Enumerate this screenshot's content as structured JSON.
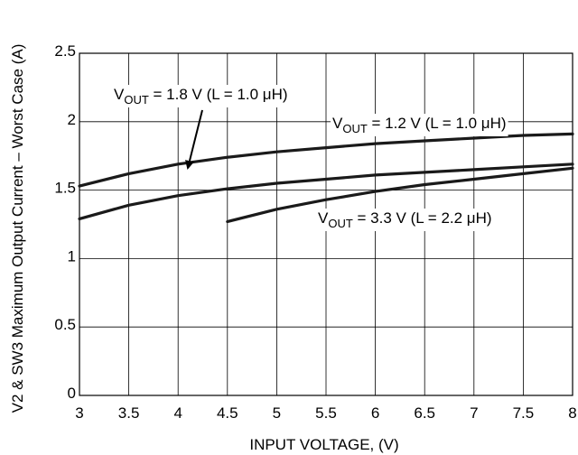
{
  "chart_data": {
    "type": "line",
    "title": "",
    "xlabel": "INPUT VOLTAGE, (V)",
    "ylabel": "V2 & SW3 Maximum Output Current – Worst Case (A)",
    "xlim": [
      3,
      8
    ],
    "ylim": [
      0,
      2.5
    ],
    "x_ticks": [
      3,
      3.5,
      4,
      4.5,
      5,
      5.5,
      6,
      6.5,
      7,
      7.5,
      8
    ],
    "x_tick_labels": [
      "3",
      "3.5",
      "4",
      "4.5",
      "5",
      "5.5",
      "6",
      "6.5",
      "7",
      "7.5",
      "8"
    ],
    "y_ticks": [
      0,
      0.5,
      1,
      1.5,
      2,
      2.5
    ],
    "y_tick_labels": [
      "0",
      "0.5",
      "1",
      "1.5",
      "2",
      "2.5"
    ],
    "grid": true,
    "series": [
      {
        "label_main": "V",
        "label_sub": "OUT",
        "label_rest": " = 1.2 V (L = 1.0 μH)",
        "x": [
          3,
          3.5,
          4,
          4.5,
          5,
          5.5,
          6,
          6.5,
          7,
          7.5,
          8
        ],
        "y": [
          1.53,
          1.62,
          1.69,
          1.74,
          1.78,
          1.81,
          1.84,
          1.86,
          1.88,
          1.9,
          1.91
        ]
      },
      {
        "label_main": "V",
        "label_sub": "OUT",
        "label_rest": " = 1.8 V (L = 1.0 μH)",
        "x": [
          3,
          3.5,
          4,
          4.5,
          5,
          5.5,
          6,
          6.5,
          7,
          7.5,
          8
        ],
        "y": [
          1.29,
          1.39,
          1.46,
          1.51,
          1.55,
          1.58,
          1.61,
          1.63,
          1.65,
          1.67,
          1.69
        ]
      },
      {
        "label_main": "V",
        "label_sub": "OUT",
        "label_rest": " = 3.3 V (L = 2.2 μH)",
        "x": [
          4.5,
          5,
          5.5,
          6,
          6.5,
          7,
          7.5,
          8
        ],
        "y": [
          1.27,
          1.36,
          1.43,
          1.49,
          1.54,
          1.58,
          1.62,
          1.66
        ]
      }
    ],
    "colors": {
      "line": "#1a1a1a",
      "grid": "#000000",
      "text": "#000000"
    }
  }
}
